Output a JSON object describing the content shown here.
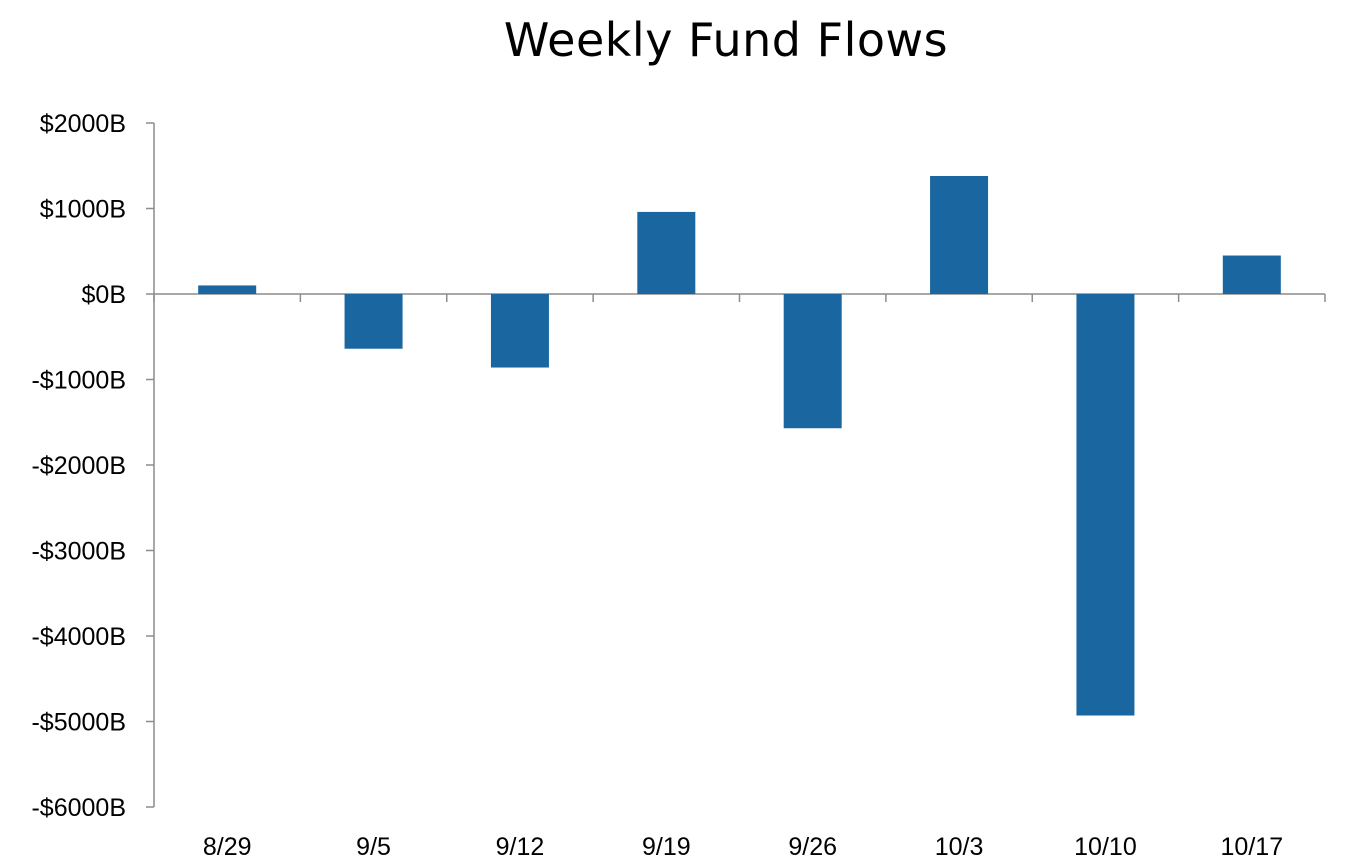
{
  "chart_data": {
    "type": "bar",
    "title": "Weekly Fund Flows",
    "xlabel": "",
    "ylabel": "",
    "categories": [
      "8/29",
      "9/5",
      "9/12",
      "9/19",
      "9/26",
      "10/3",
      "10/10",
      "10/17"
    ],
    "values": [
      100,
      -640,
      -860,
      960,
      -1570,
      1380,
      -4930,
      450
    ],
    "ylim": [
      -6000,
      2000
    ],
    "yticks": [
      2000,
      1000,
      0,
      -1000,
      -2000,
      -3000,
      -4000,
      -5000,
      -6000
    ],
    "ytick_labels": [
      "$2000B",
      "$1000B",
      "$0B",
      "-$1000B",
      "-$2000B",
      "-$3000B",
      "-$4000B",
      "-$5000B",
      "-$6000B"
    ],
    "grid": false,
    "legend": "none",
    "colors": {
      "bar": "#1A66A0",
      "axis": "#8C8C8C"
    }
  }
}
